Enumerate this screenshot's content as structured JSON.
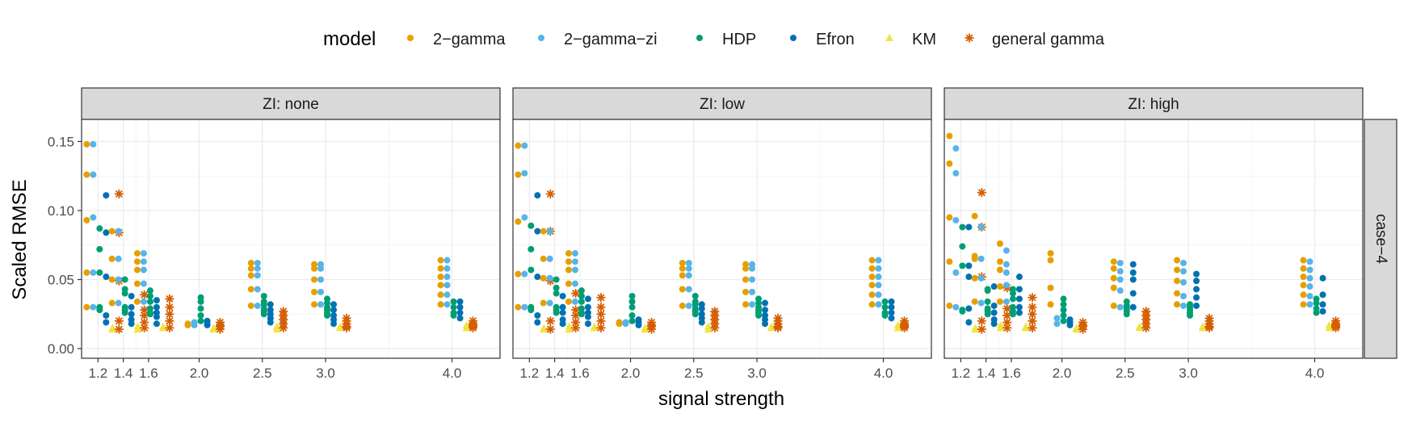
{
  "chart_data": {
    "type": "scatter",
    "title": "",
    "xlabel": "signal strength",
    "ylabel": "Scaled RMSE",
    "ylim": [
      -0.007,
      0.166
    ],
    "yticks": [
      0.0,
      0.05,
      0.1,
      0.15
    ],
    "ytick_labels": [
      "0.00",
      "0.05",
      "0.10",
      "0.15"
    ],
    "x_categories": [
      "1.2",
      "1.4",
      "1.6",
      "2.0",
      "2.5",
      "3.0",
      "4.0"
    ],
    "grid": true,
    "legend": {
      "title": "model",
      "placement": "top",
      "entries": [
        {
          "label": "2−gamma",
          "color": "#E69F00",
          "shape": "circle"
        },
        {
          "label": "2−gamma−zi",
          "color": "#56B4E9",
          "shape": "circle"
        },
        {
          "label": "HDP",
          "color": "#009E73",
          "shape": "circle"
        },
        {
          "label": "Efron",
          "color": "#0072B2",
          "shape": "circle"
        },
        {
          "label": "KM",
          "color": "#F0E442",
          "shape": "triangle"
        },
        {
          "label": "general gamma",
          "color": "#D55E00",
          "shape": "asterisk"
        }
      ]
    },
    "row_strip": "case−4",
    "panels": [
      {
        "strip": "ZI: none",
        "points": {
          "1.2": {
            "2−gamma": [
              0.148,
              0.126,
              0.093,
              0.055,
              0.03
            ],
            "2−gamma−zi": [
              0.148,
              0.126,
              0.095,
              0.055,
              0.03
            ],
            "HDP": [
              0.087,
              0.072,
              0.055,
              0.03,
              0.028
            ],
            "Efron": [
              0.111,
              0.084,
              0.052,
              0.024,
              0.019
            ],
            "KM": [
              0.015,
              0.014
            ],
            "general gamma": [
              0.112,
              0.084,
              0.049,
              0.02,
              0.014
            ]
          },
          "1.4": {
            "2−gamma": [
              0.085,
              0.065,
              0.05,
              0.033
            ],
            "2−gamma−zi": [
              0.085,
              0.065,
              0.05,
              0.033
            ],
            "HDP": [
              0.05,
              0.043,
              0.04,
              0.03,
              0.028,
              0.026
            ],
            "Efron": [
              0.038,
              0.03,
              0.025,
              0.021,
              0.018
            ],
            "KM": [
              0.016,
              0.014
            ],
            "general gamma": [
              0.039,
              0.028,
              0.024,
              0.019,
              0.015
            ]
          },
          "1.6": {
            "2−gamma": [
              0.069,
              0.063,
              0.057,
              0.047,
              0.034
            ],
            "2−gamma−zi": [
              0.069,
              0.063,
              0.057,
              0.047,
              0.034
            ],
            "HDP": [
              0.042,
              0.038,
              0.034,
              0.029,
              0.026,
              0.025
            ],
            "Efron": [
              0.035,
              0.03,
              0.026,
              0.023,
              0.018
            ],
            "KM": [
              0.016,
              0.015
            ],
            "general gamma": [
              0.036,
              0.03,
              0.025,
              0.02,
              0.015
            ]
          },
          "2.0": {
            "2−gamma": [
              0.018,
              0.017
            ],
            "2−gamma−zi": [
              0.019,
              0.017
            ],
            "HDP": [
              0.037,
              0.034,
              0.029,
              0.024,
              0.02
            ],
            "Efron": [
              0.02,
              0.018,
              0.017
            ],
            "KM": [
              0.015,
              0.014
            ],
            "general gamma": [
              0.019,
              0.017,
              0.016,
              0.014
            ]
          },
          "2.5": {
            "2−gamma": [
              0.062,
              0.058,
              0.053,
              0.043,
              0.031
            ],
            "2−gamma−zi": [
              0.062,
              0.058,
              0.053,
              0.043,
              0.031
            ],
            "HDP": [
              0.038,
              0.034,
              0.032,
              0.029,
              0.027,
              0.025
            ],
            "Efron": [
              0.032,
              0.028,
              0.025,
              0.022,
              0.019
            ],
            "KM": [
              0.016,
              0.014
            ],
            "general gamma": [
              0.027,
              0.024,
              0.021,
              0.018,
              0.015
            ]
          },
          "3.0": {
            "2−gamma": [
              0.061,
              0.058,
              0.05,
              0.041,
              0.032
            ],
            "2−gamma−zi": [
              0.061,
              0.058,
              0.05,
              0.041,
              0.032
            ],
            "HDP": [
              0.036,
              0.033,
              0.03,
              0.028,
              0.026,
              0.024
            ],
            "Efron": [
              0.032,
              0.028,
              0.024,
              0.021,
              0.018
            ],
            "KM": [
              0.016,
              0.015
            ],
            "general gamma": [
              0.022,
              0.02,
              0.018,
              0.016,
              0.015
            ]
          },
          "4.0": {
            "2−gamma": [
              0.064,
              0.058,
              0.052,
              0.046,
              0.039,
              0.032
            ],
            "2−gamma−zi": [
              0.064,
              0.058,
              0.052,
              0.046,
              0.039,
              0.032
            ],
            "HDP": [
              0.034,
              0.03,
              0.026,
              0.024
            ],
            "Efron": [
              0.034,
              0.03,
              0.026,
              0.022
            ],
            "KM": [
              0.017,
              0.015
            ],
            "general gamma": [
              0.02,
              0.018,
              0.017,
              0.016,
              0.015
            ]
          }
        }
      },
      {
        "strip": "ZI: low",
        "points": {
          "1.2": {
            "2−gamma": [
              0.147,
              0.126,
              0.092,
              0.054,
              0.03
            ],
            "2−gamma−zi": [
              0.147,
              0.127,
              0.095,
              0.054,
              0.03
            ],
            "HDP": [
              0.089,
              0.072,
              0.057,
              0.03,
              0.028
            ],
            "Efron": [
              0.111,
              0.085,
              0.052,
              0.024,
              0.019
            ],
            "KM": [
              0.015,
              0.014
            ],
            "general gamma": [
              0.112,
              0.085,
              0.049,
              0.02,
              0.014
            ]
          },
          "1.4": {
            "2−gamma": [
              0.085,
              0.065,
              0.051,
              0.033
            ],
            "2−gamma−zi": [
              0.085,
              0.065,
              0.051,
              0.033
            ],
            "HDP": [
              0.05,
              0.044,
              0.04,
              0.03,
              0.028,
              0.026
            ],
            "Efron": [
              0.038,
              0.03,
              0.026,
              0.021,
              0.018
            ],
            "KM": [
              0.016,
              0.014
            ],
            "general gamma": [
              0.04,
              0.028,
              0.024,
              0.019,
              0.015
            ]
          },
          "1.6": {
            "2−gamma": [
              0.069,
              0.063,
              0.057,
              0.047,
              0.034
            ],
            "2−gamma−zi": [
              0.069,
              0.063,
              0.057,
              0.047,
              0.034
            ],
            "HDP": [
              0.042,
              0.038,
              0.034,
              0.029,
              0.026,
              0.025
            ],
            "Efron": [
              0.036,
              0.03,
              0.026,
              0.023,
              0.018
            ],
            "KM": [
              0.016,
              0.015
            ],
            "general gamma": [
              0.037,
              0.03,
              0.025,
              0.02,
              0.015
            ]
          },
          "2.0": {
            "2−gamma": [
              0.019,
              0.018
            ],
            "2−gamma−zi": [
              0.019,
              0.018
            ],
            "HDP": [
              0.038,
              0.034,
              0.03,
              0.024,
              0.02
            ],
            "Efron": [
              0.021,
              0.019,
              0.017
            ],
            "KM": [
              0.015,
              0.014
            ],
            "general gamma": [
              0.019,
              0.017,
              0.016,
              0.014
            ]
          },
          "2.5": {
            "2−gamma": [
              0.062,
              0.058,
              0.053,
              0.043,
              0.031
            ],
            "2−gamma−zi": [
              0.062,
              0.058,
              0.053,
              0.043,
              0.031
            ],
            "HDP": [
              0.038,
              0.034,
              0.032,
              0.029,
              0.027,
              0.025
            ],
            "Efron": [
              0.032,
              0.029,
              0.025,
              0.022,
              0.019
            ],
            "KM": [
              0.016,
              0.014
            ],
            "general gamma": [
              0.027,
              0.024,
              0.021,
              0.018,
              0.015
            ]
          },
          "3.0": {
            "2−gamma": [
              0.061,
              0.058,
              0.05,
              0.041,
              0.032
            ],
            "2−gamma−zi": [
              0.061,
              0.058,
              0.05,
              0.041,
              0.032
            ],
            "HDP": [
              0.036,
              0.033,
              0.03,
              0.028,
              0.026,
              0.024
            ],
            "Efron": [
              0.033,
              0.028,
              0.024,
              0.021,
              0.018
            ],
            "KM": [
              0.016,
              0.015
            ],
            "general gamma": [
              0.022,
              0.02,
              0.018,
              0.016,
              0.015
            ]
          },
          "4.0": {
            "2−gamma": [
              0.064,
              0.058,
              0.052,
              0.046,
              0.039,
              0.032
            ],
            "2−gamma−zi": [
              0.064,
              0.058,
              0.052,
              0.046,
              0.039,
              0.032
            ],
            "HDP": [
              0.034,
              0.03,
              0.026,
              0.024
            ],
            "Efron": [
              0.034,
              0.03,
              0.026,
              0.022
            ],
            "KM": [
              0.017,
              0.015
            ],
            "general gamma": [
              0.02,
              0.018,
              0.017,
              0.016,
              0.015
            ]
          }
        }
      },
      {
        "strip": "ZI: high",
        "points": {
          "1.2": {
            "2−gamma": [
              0.154,
              0.134,
              0.095,
              0.063,
              0.031
            ],
            "2−gamma−zi": [
              0.145,
              0.127,
              0.093,
              0.055,
              0.03
            ],
            "HDP": [
              0.088,
              0.074,
              0.06,
              0.028,
              0.027
            ],
            "Efron": [
              0.088,
              0.06,
              0.052,
              0.029,
              0.019
            ],
            "KM": [
              0.015,
              0.014
            ],
            "general gamma": [
              0.113,
              0.088,
              0.052,
              0.02,
              0.014
            ]
          },
          "1.4": {
            "2−gamma": [
              0.096,
              0.067,
              0.065,
              0.051,
              0.034
            ],
            "2−gamma−zi": [
              0.088,
              0.065,
              0.051,
              0.033
            ],
            "HDP": [
              0.043,
              0.042,
              0.034,
              0.029,
              0.027,
              0.025
            ],
            "Efron": [
              0.045,
              0.031,
              0.026,
              0.021,
              0.018
            ],
            "KM": [
              0.017,
              0.015
            ],
            "general gamma": [
              0.044,
              0.029,
              0.024,
              0.019,
              0.015
            ]
          },
          "1.6": {
            "2−gamma": [
              0.076,
              0.063,
              0.057,
              0.045,
              0.034
            ],
            "2−gamma−zi": [
              0.071,
              0.061,
              0.055,
              0.046,
              0.034
            ],
            "HDP": [
              0.043,
              0.04,
              0.036,
              0.03,
              0.027,
              0.025
            ],
            "Efron": [
              0.052,
              0.043,
              0.036,
              0.03,
              0.026
            ],
            "KM": [
              0.016,
              0.015
            ],
            "general gamma": [
              0.037,
              0.03,
              0.025,
              0.02,
              0.015
            ]
          },
          "2.0": {
            "2−gamma": [
              0.069,
              0.064,
              0.044,
              0.032
            ],
            "2−gamma−zi": [
              0.022,
              0.018
            ],
            "HDP": [
              0.036,
              0.032,
              0.028,
              0.024,
              0.02
            ],
            "Efron": [
              0.021,
              0.019,
              0.017
            ],
            "KM": [
              0.015,
              0.014
            ],
            "general gamma": [
              0.019,
              0.017,
              0.016,
              0.014
            ]
          },
          "2.5": {
            "2−gamma": [
              0.063,
              0.058,
              0.051,
              0.044,
              0.031
            ],
            "2−gamma−zi": [
              0.062,
              0.056,
              0.05,
              0.042,
              0.03
            ],
            "HDP": [
              0.034,
              0.031,
              0.029,
              0.027,
              0.025
            ],
            "Efron": [
              0.061,
              0.055,
              0.05,
              0.04,
              0.03
            ],
            "KM": [
              0.016,
              0.015
            ],
            "general gamma": [
              0.027,
              0.024,
              0.021,
              0.018,
              0.015
            ]
          },
          "3.0": {
            "2−gamma": [
              0.064,
              0.057,
              0.049,
              0.04,
              0.032
            ],
            "2−gamma−zi": [
              0.062,
              0.056,
              0.048,
              0.038,
              0.031
            ],
            "HDP": [
              0.032,
              0.03,
              0.028,
              0.026,
              0.024
            ],
            "Efron": [
              0.054,
              0.049,
              0.043,
              0.037,
              0.031
            ],
            "KM": [
              0.016,
              0.015
            ],
            "general gamma": [
              0.022,
              0.02,
              0.018,
              0.016,
              0.015
            ]
          },
          "4.0": {
            "2−gamma": [
              0.064,
              0.058,
              0.052,
              0.046,
              0.039,
              0.032
            ],
            "2−gamma−zi": [
              0.063,
              0.057,
              0.051,
              0.045,
              0.038,
              0.032
            ],
            "HDP": [
              0.036,
              0.033,
              0.029,
              0.026
            ],
            "Efron": [
              0.051,
              0.039,
              0.032,
              0.027
            ],
            "KM": [
              0.017,
              0.015
            ],
            "general gamma": [
              0.02,
              0.018,
              0.017,
              0.016,
              0.015
            ]
          }
        }
      }
    ]
  }
}
